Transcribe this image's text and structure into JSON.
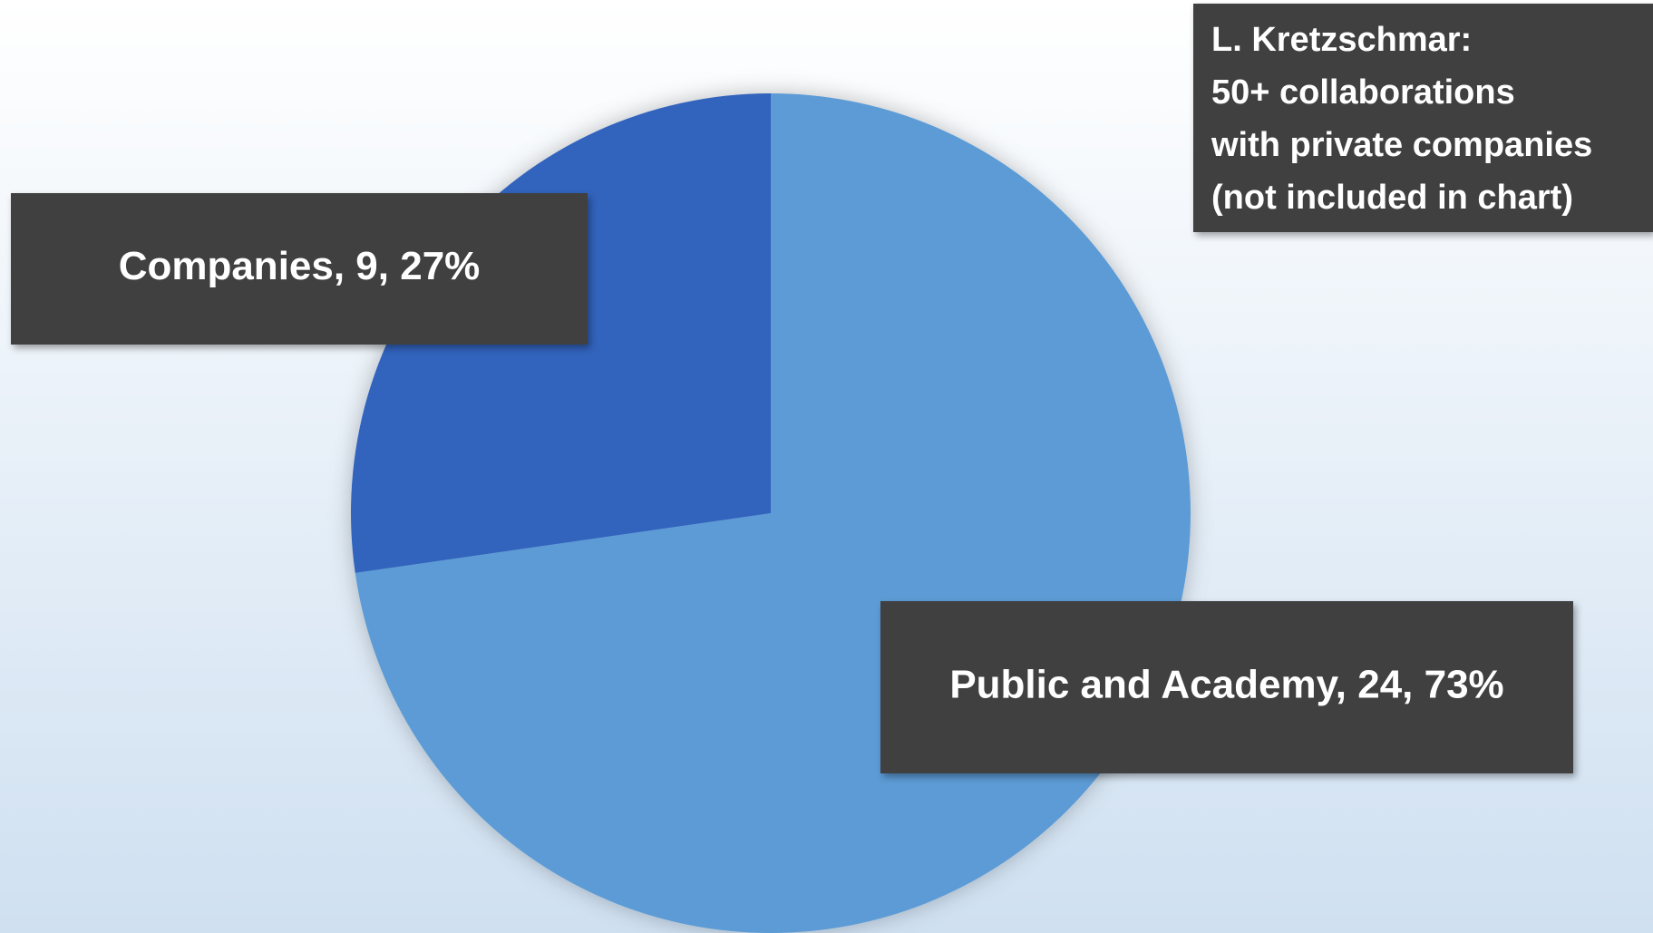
{
  "chart_data": {
    "type": "pie",
    "categories": [
      "Public and Academy",
      "Companies"
    ],
    "values": [
      24,
      9
    ],
    "value_labels": [
      "Public and Academy, 24, 73%",
      "Companies, 9, 27%"
    ],
    "colors": [
      "#5b9bd5",
      "#3264bd"
    ],
    "annotation": {
      "lines": [
        "L. Kretzschmar:",
        "50+ collaborations",
        "with private companies",
        "(not included in chart)"
      ]
    }
  }
}
